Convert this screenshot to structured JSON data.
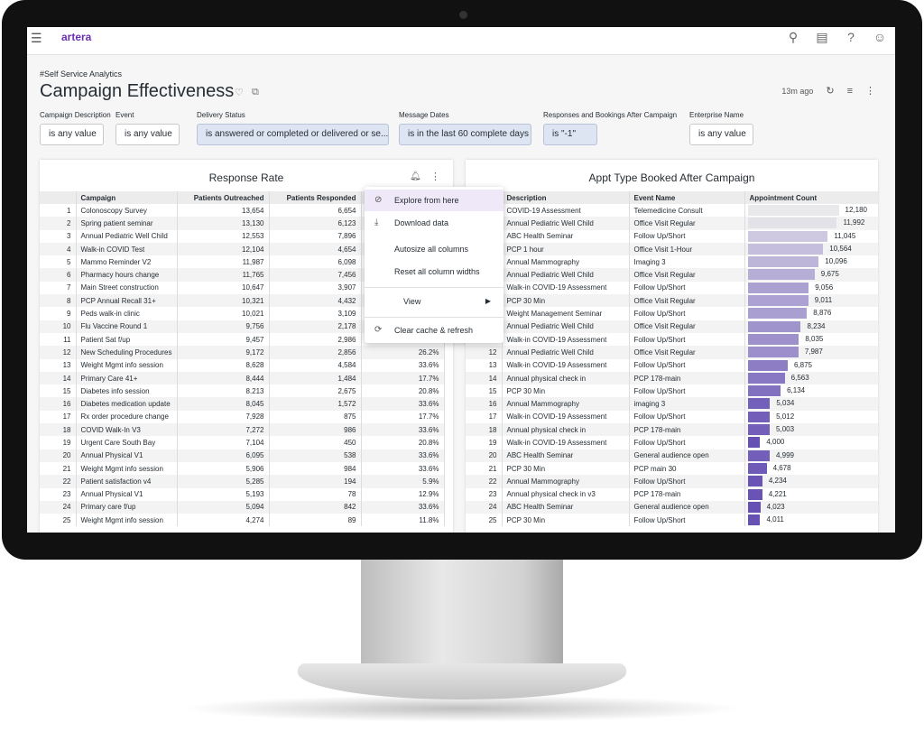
{
  "app": {
    "logo": "artera",
    "menu_icon": "hamburger-icon",
    "top_icons": [
      "search-icon",
      "marketplace-icon",
      "help-icon",
      "account-icon"
    ]
  },
  "header": {
    "breadcrumb": "#Self Service Analytics",
    "title": "Campaign Effectiveness",
    "updated": "13m ago"
  },
  "filters": [
    {
      "label": "Campaign Description",
      "value": "is any value",
      "active": false
    },
    {
      "label": "Event",
      "value": "is any value",
      "active": false
    },
    {
      "label": "Delivery Status",
      "value": "is answered or completed or delivered or se...",
      "active": true
    },
    {
      "label": "Message Dates",
      "value": "is in the last 60 complete days",
      "active": true
    },
    {
      "label": "Responses and Bookings After Campaign",
      "value": "is \"-1\"",
      "active": true
    },
    {
      "label": "Enterprise Name",
      "value": "is any value",
      "active": false
    }
  ],
  "response_rate": {
    "title": "Response Rate",
    "columns": [
      "",
      "Campaign",
      "Patients Outreached",
      "Patients Responded",
      ""
    ],
    "rows": [
      [
        "1",
        "Colonoscopy Survey",
        "13,654",
        "6,654",
        ""
      ],
      [
        "2",
        "Spring patient seminar",
        "13,130",
        "6,123",
        ""
      ],
      [
        "3",
        "Annual Pediatric Well Child",
        "12,553",
        "7,896",
        ""
      ],
      [
        "4",
        "Walk-in COVID Test",
        "12,104",
        "4,654",
        ""
      ],
      [
        "5",
        "Mammo Reminder V2",
        "11,987",
        "6,098",
        ""
      ],
      [
        "6",
        "Pharmacy hours change",
        "11,765",
        "7,456",
        ""
      ],
      [
        "7",
        "Main Street construction",
        "10,647",
        "3,907",
        ""
      ],
      [
        "8",
        "PCP Annual Recall 31+",
        "10,321",
        "4,432",
        ""
      ],
      [
        "9",
        "Peds walk-in clinic",
        "10,021",
        "3,109",
        ""
      ],
      [
        "10",
        "Flu Vaccine Round 1",
        "9,756",
        "2,178",
        ""
      ],
      [
        "11",
        "Patient Sat f/up",
        "9,457",
        "2,986",
        ""
      ],
      [
        "12",
        "New Scheduling Procedures",
        "9,172",
        "2,856",
        "26.2%"
      ],
      [
        "13",
        "Weight Mgmt info session",
        "8,628",
        "4,584",
        "33.6%"
      ],
      [
        "14",
        "Primary Care 41+",
        "8,444",
        "1,484",
        "17.7%"
      ],
      [
        "15",
        "Diabetes info session",
        "8.213",
        "2,675",
        "20.8%"
      ],
      [
        "16",
        "Diabetes medication update",
        "8,045",
        "1,572",
        "33.6%"
      ],
      [
        "17",
        "Rx order procedure change",
        "7,928",
        "875",
        "17.7%"
      ],
      [
        "18",
        "COVID Walk-In V3",
        "7,272",
        "986",
        "33.6%"
      ],
      [
        "19",
        "Urgent Care South Bay",
        "7,104",
        "450",
        "20.8%"
      ],
      [
        "20",
        "Annual Physical V1",
        "6,095",
        "538",
        "33.6%"
      ],
      [
        "21",
        "Weight Mgmt info session",
        "5,906",
        "984",
        "33.6%"
      ],
      [
        "22",
        "Patient satisfaction v4",
        "5,285",
        "194",
        "5.9%"
      ],
      [
        "23",
        "Annual Physical V1",
        "5,193",
        "78",
        "12.9%"
      ],
      [
        "24",
        "Primary care f/up",
        "5,094",
        "842",
        "33.6%"
      ],
      [
        "25",
        "Weight Mgmt info session",
        "4,274",
        "89",
        "11.8%"
      ]
    ]
  },
  "appt_type": {
    "title": "Appt Type Booked After Campaign",
    "columns": [
      "",
      "Description",
      "Event Name",
      "Appointment Count"
    ],
    "bar_colors": [
      "#e9e9ec",
      "#6650b4"
    ],
    "rows": [
      [
        "1",
        "COVID-19 Assessment",
        "Telemedicine Consult",
        12180
      ],
      [
        "2",
        "Annual Pediatric Well Child",
        "Office Visit Regular",
        11992
      ],
      [
        "3",
        "ABC Health Seminar",
        "Follow Up/Short",
        11045
      ],
      [
        "4",
        "PCP 1 hour",
        "Office Visit 1-Hour",
        10564
      ],
      [
        "5",
        "Annual Mammography",
        "Imaging 3",
        10096
      ],
      [
        "6",
        "Annual Pediatric Well Child",
        "Office Visit Regular",
        9675
      ],
      [
        "7",
        "Walk-in COVID-19 Assessment",
        "Follow Up/Short",
        9056
      ],
      [
        "8",
        "PCP 30 Min",
        "Office Visit Regular",
        9011
      ],
      [
        "9",
        "Weight Management Seminar",
        "Follow Up/Short",
        8876
      ],
      [
        "10",
        "Annual Pediatric Well Child",
        "Office Visit Regular",
        8234
      ],
      [
        "11",
        "Walk-in COVID-19 Assessment",
        "Follow Up/Short",
        8035
      ],
      [
        "12",
        "Annual Pediatric Well Child",
        "Office Visit Regular",
        7987
      ],
      [
        "13",
        "Walk-in COVID-19 Assessment",
        "Follow Up/Short",
        6875
      ],
      [
        "14",
        "Annual physical check in",
        "PCP 178-main",
        6563
      ],
      [
        "15",
        "PCP 30 Min",
        "Follow Up/Short",
        6134
      ],
      [
        "16",
        "Annual Mammography",
        "imaging 3",
        5034
      ],
      [
        "17",
        "Walk-in COVID-19 Assessment",
        "Follow Up/Short",
        5012
      ],
      [
        "18",
        "Annual physical check in",
        "PCP 178-main",
        5003
      ],
      [
        "19",
        "Walk-in COVID-19 Assessment",
        "Follow Up/Short",
        4000
      ],
      [
        "20",
        "ABC Health Seminar",
        "General audience open",
        4999
      ],
      [
        "21",
        "PCP 30 Min",
        "PCP main 30",
        4678
      ],
      [
        "22",
        "Annual Mammography",
        "Follow Up/Short",
        4234
      ],
      [
        "23",
        "Annual physical check in v3",
        "PCP 178-main",
        4221
      ],
      [
        "24",
        "ABC Health Seminar",
        "General audience open",
        4023
      ],
      [
        "25",
        "PCP 30 Min",
        "Follow Up/Short",
        4011
      ]
    ]
  },
  "context_menu": {
    "items": [
      "Explore from here",
      "Download data",
      "Autosize all columns",
      "Reset all column widths",
      "View",
      "Clear cache & refresh"
    ]
  }
}
